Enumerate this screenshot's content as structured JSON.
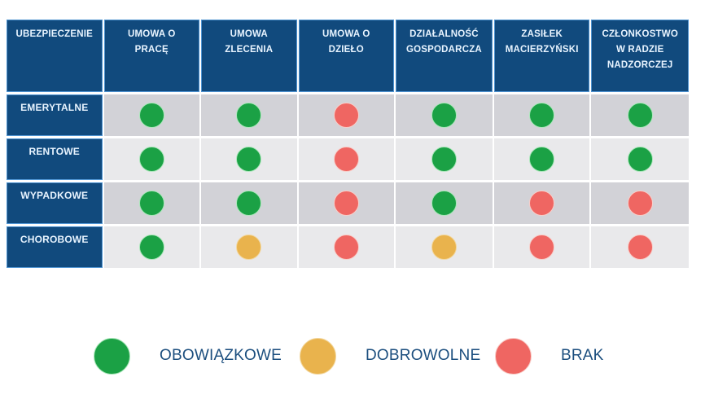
{
  "chart_data": {
    "type": "table",
    "corner_header": "UBEZPIECZENIE",
    "columns": [
      "UMOWA O PRACĘ",
      "UMOWA ZLECENIA",
      "UMOWA O DZIEŁO",
      "DZIAŁALNOŚĆ GOSPODARCZA",
      "ZASIŁEK MACIERZYŃSKI",
      "CZŁONKOSTWO W RADZIE NADZORCZEJ"
    ],
    "rows": [
      {
        "label": "EMERYTALNE",
        "values": [
          "mandatory",
          "mandatory",
          "none",
          "mandatory",
          "mandatory",
          "mandatory"
        ]
      },
      {
        "label": "RENTOWE",
        "values": [
          "mandatory",
          "mandatory",
          "none",
          "mandatory",
          "mandatory",
          "mandatory"
        ]
      },
      {
        "label": "WYPADKOWE",
        "values": [
          "mandatory",
          "mandatory",
          "none",
          "mandatory",
          "none",
          "none"
        ]
      },
      {
        "label": "CHOROBOWE",
        "values": [
          "mandatory",
          "voluntary",
          "none",
          "voluntary",
          "none",
          "none"
        ]
      }
    ],
    "legend": [
      {
        "key": "mandatory",
        "label": "OBOWIĄZKOWE",
        "color": "#1BA145",
        "rim": "#A9E7B9"
      },
      {
        "key": "voluntary",
        "label": "DOBROWOLNE",
        "color": "#E9B34D",
        "rim": "#F2D79E"
      },
      {
        "key": "none",
        "label": "BRAK",
        "color": "#EF6662",
        "rim": "#F8CDC8"
      }
    ]
  },
  "colors": {
    "page_bg": "#FFFFFF",
    "header_bg": "#114A7D",
    "header_border": "#4E93D1",
    "header_text": "#E8F4FF",
    "row_band_dark": "#D2D2D7",
    "row_band_light": "#E9E9EB",
    "legend_text": "#1B4E7E"
  }
}
